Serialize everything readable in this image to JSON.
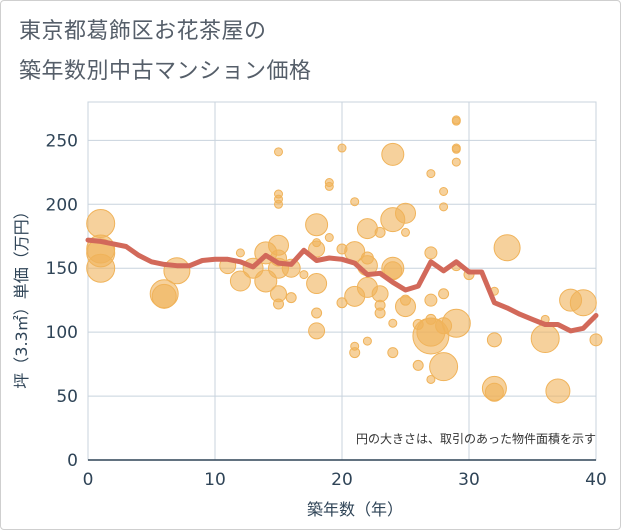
{
  "title_lines": [
    "東京都葛飾区お花茶屋の",
    "築年数別中古マンション価格"
  ],
  "chart_data": {
    "type": "scatter",
    "title": "東京都葛飾区お花茶屋の築年数別中古マンション価格",
    "xlabel": "築年数（年）",
    "ylabel": "坪（3.3㎡）単価（万円）",
    "xlim": [
      0,
      40
    ],
    "ylim": [
      0,
      280
    ],
    "xticks": [
      0,
      10,
      20,
      30,
      40
    ],
    "yticks": [
      0,
      50,
      100,
      150,
      200,
      250
    ],
    "grid": true,
    "note": "円の大きさは、取引のあった物件面積を示す",
    "colors": {
      "bubble": "#f0b35a",
      "line": "#d2695a",
      "grid": "#c8d3dd"
    },
    "series": [
      {
        "type": "scatter",
        "x_comment": "築年数",
        "points": [
          {
            "x": 1,
            "y": 185,
            "s": 14
          },
          {
            "x": 1,
            "y": 165,
            "s": 14
          },
          {
            "x": 1,
            "y": 162,
            "s": 14
          },
          {
            "x": 1,
            "y": 150,
            "s": 14
          },
          {
            "x": 6,
            "y": 130,
            "s": 14
          },
          {
            "x": 6,
            "y": 128,
            "s": 12
          },
          {
            "x": 7,
            "y": 148,
            "s": 13
          },
          {
            "x": 11,
            "y": 152,
            "s": 8
          },
          {
            "x": 12,
            "y": 140,
            "s": 10
          },
          {
            "x": 12,
            "y": 162,
            "s": 4
          },
          {
            "x": 13,
            "y": 150,
            "s": 10
          },
          {
            "x": 14,
            "y": 162,
            "s": 11
          },
          {
            "x": 14,
            "y": 140,
            "s": 11
          },
          {
            "x": 15,
            "y": 241,
            "s": 4
          },
          {
            "x": 15,
            "y": 208,
            "s": 4
          },
          {
            "x": 15,
            "y": 204,
            "s": 4
          },
          {
            "x": 15,
            "y": 200,
            "s": 4
          },
          {
            "x": 15,
            "y": 168,
            "s": 10
          },
          {
            "x": 15,
            "y": 158,
            "s": 8
          },
          {
            "x": 15,
            "y": 150,
            "s": 10
          },
          {
            "x": 15,
            "y": 130,
            "s": 8
          },
          {
            "x": 15,
            "y": 122,
            "s": 5
          },
          {
            "x": 16,
            "y": 150,
            "s": 9
          },
          {
            "x": 16,
            "y": 127,
            "s": 5
          },
          {
            "x": 17,
            "y": 145,
            "s": 4
          },
          {
            "x": 18,
            "y": 184,
            "s": 11
          },
          {
            "x": 18,
            "y": 165,
            "s": 8
          },
          {
            "x": 18,
            "y": 138,
            "s": 10
          },
          {
            "x": 18,
            "y": 115,
            "s": 5
          },
          {
            "x": 18,
            "y": 101,
            "s": 8
          },
          {
            "x": 18,
            "y": 170,
            "s": 4
          },
          {
            "x": 19,
            "y": 217,
            "s": 4
          },
          {
            "x": 19,
            "y": 214,
            "s": 4
          },
          {
            "x": 19,
            "y": 174,
            "s": 4
          },
          {
            "x": 20,
            "y": 244,
            "s": 4
          },
          {
            "x": 20,
            "y": 165,
            "s": 5
          },
          {
            "x": 20,
            "y": 123,
            "s": 5
          },
          {
            "x": 21,
            "y": 202,
            "s": 4
          },
          {
            "x": 21,
            "y": 163,
            "s": 10
          },
          {
            "x": 21,
            "y": 128,
            "s": 10
          },
          {
            "x": 21,
            "y": 89,
            "s": 4
          },
          {
            "x": 21,
            "y": 84,
            "s": 5
          },
          {
            "x": 22,
            "y": 181,
            "s": 10
          },
          {
            "x": 22,
            "y": 158,
            "s": 6
          },
          {
            "x": 22,
            "y": 152,
            "s": 10
          },
          {
            "x": 22,
            "y": 135,
            "s": 10
          },
          {
            "x": 22,
            "y": 93,
            "s": 4
          },
          {
            "x": 23,
            "y": 178,
            "s": 5
          },
          {
            "x": 23,
            "y": 130,
            "s": 8
          },
          {
            "x": 23,
            "y": 121,
            "s": 5
          },
          {
            "x": 23,
            "y": 115,
            "s": 5
          },
          {
            "x": 24,
            "y": 239,
            "s": 11
          },
          {
            "x": 24,
            "y": 188,
            "s": 12
          },
          {
            "x": 24,
            "y": 150,
            "s": 11
          },
          {
            "x": 24,
            "y": 148,
            "s": 9
          },
          {
            "x": 24,
            "y": 107,
            "s": 4
          },
          {
            "x": 24,
            "y": 84,
            "s": 5
          },
          {
            "x": 25,
            "y": 193,
            "s": 10
          },
          {
            "x": 25,
            "y": 178,
            "s": 4
          },
          {
            "x": 25,
            "y": 125,
            "s": 5
          },
          {
            "x": 25,
            "y": 120,
            "s": 10
          },
          {
            "x": 26,
            "y": 106,
            "s": 5
          },
          {
            "x": 26,
            "y": 74,
            "s": 5
          },
          {
            "x": 27,
            "y": 224,
            "s": 4
          },
          {
            "x": 27,
            "y": 162,
            "s": 6
          },
          {
            "x": 27,
            "y": 125,
            "s": 6
          },
          {
            "x": 27,
            "y": 110,
            "s": 5
          },
          {
            "x": 27,
            "y": 100,
            "s": 14
          },
          {
            "x": 27,
            "y": 97,
            "s": 18
          },
          {
            "x": 27,
            "y": 63,
            "s": 4
          },
          {
            "x": 28,
            "y": 210,
            "s": 4
          },
          {
            "x": 28,
            "y": 198,
            "s": 4
          },
          {
            "x": 28,
            "y": 130,
            "s": 5
          },
          {
            "x": 28,
            "y": 105,
            "s": 8
          },
          {
            "x": 28,
            "y": 73,
            "s": 14
          },
          {
            "x": 29,
            "y": 266,
            "s": 4
          },
          {
            "x": 29,
            "y": 265,
            "s": 4
          },
          {
            "x": 29,
            "y": 244,
            "s": 4
          },
          {
            "x": 29,
            "y": 243,
            "s": 4
          },
          {
            "x": 29,
            "y": 233,
            "s": 4
          },
          {
            "x": 29,
            "y": 152,
            "s": 5
          },
          {
            "x": 29,
            "y": 107,
            "s": 14
          },
          {
            "x": 30,
            "y": 145,
            "s": 5
          },
          {
            "x": 32,
            "y": 132,
            "s": 4
          },
          {
            "x": 32,
            "y": 94,
            "s": 7
          },
          {
            "x": 32,
            "y": 56,
            "s": 12
          },
          {
            "x": 32,
            "y": 53,
            "s": 9
          },
          {
            "x": 33,
            "y": 166,
            "s": 13
          },
          {
            "x": 36,
            "y": 110,
            "s": 4
          },
          {
            "x": 36,
            "y": 95,
            "s": 14
          },
          {
            "x": 37,
            "y": 54,
            "s": 12
          },
          {
            "x": 38,
            "y": 125,
            "s": 11
          },
          {
            "x": 39,
            "y": 123,
            "s": 13
          },
          {
            "x": 40,
            "y": 94,
            "s": 6
          }
        ]
      },
      {
        "type": "line",
        "points": [
          {
            "x": 0,
            "y": 172
          },
          {
            "x": 1,
            "y": 171
          },
          {
            "x": 2,
            "y": 169
          },
          {
            "x": 3,
            "y": 167
          },
          {
            "x": 4,
            "y": 160
          },
          {
            "x": 5,
            "y": 155
          },
          {
            "x": 6,
            "y": 153
          },
          {
            "x": 7,
            "y": 152
          },
          {
            "x": 8,
            "y": 152
          },
          {
            "x": 9,
            "y": 156
          },
          {
            "x": 10,
            "y": 157
          },
          {
            "x": 11,
            "y": 157
          },
          {
            "x": 12,
            "y": 155
          },
          {
            "x": 13,
            "y": 151
          },
          {
            "x": 14,
            "y": 160
          },
          {
            "x": 15,
            "y": 154
          },
          {
            "x": 16,
            "y": 153
          },
          {
            "x": 17,
            "y": 164
          },
          {
            "x": 18,
            "y": 156
          },
          {
            "x": 19,
            "y": 158
          },
          {
            "x": 20,
            "y": 157
          },
          {
            "x": 21,
            "y": 154
          },
          {
            "x": 22,
            "y": 145
          },
          {
            "x": 23,
            "y": 146
          },
          {
            "x": 24,
            "y": 139
          },
          {
            "x": 25,
            "y": 133
          },
          {
            "x": 26,
            "y": 136
          },
          {
            "x": 27,
            "y": 155
          },
          {
            "x": 28,
            "y": 148
          },
          {
            "x": 29,
            "y": 155
          },
          {
            "x": 30,
            "y": 147
          },
          {
            "x": 31,
            "y": 147
          },
          {
            "x": 32,
            "y": 123
          },
          {
            "x": 33,
            "y": 119
          },
          {
            "x": 34,
            "y": 114
          },
          {
            "x": 35,
            "y": 110
          },
          {
            "x": 36,
            "y": 106
          },
          {
            "x": 37,
            "y": 106
          },
          {
            "x": 38,
            "y": 101
          },
          {
            "x": 39,
            "y": 103
          },
          {
            "x": 40,
            "y": 113
          }
        ]
      }
    ]
  }
}
